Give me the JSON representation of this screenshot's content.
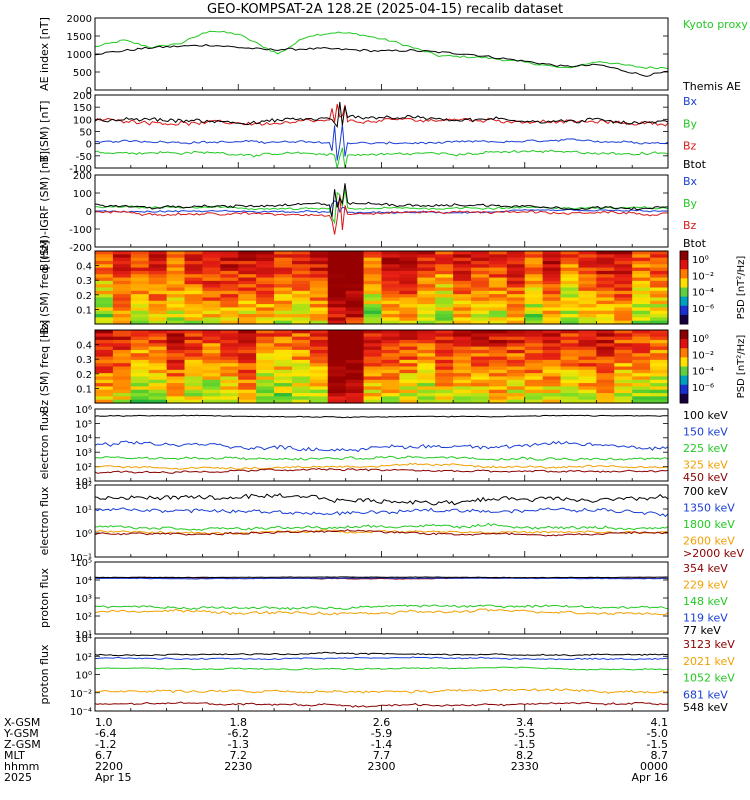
{
  "title": "GEO-KOMPSAT-2A 128.2E (2025-04-15) recalib dataset",
  "colors": {
    "black": "#000000",
    "blue": "#1a3fd6",
    "green": "#22c922",
    "red": "#d81818",
    "orange": "#f0a000",
    "darkred": "#8b0000"
  },
  "chart_data": [
    {
      "type": "line",
      "id": "ae",
      "ylabel": "AE index [nT]",
      "ylim": [
        0,
        2000
      ],
      "yscale": "linear",
      "yticks": [
        "0",
        "500",
        "1000",
        "1500",
        "2000"
      ],
      "series": [
        {
          "name": "Kyoto proxy AE",
          "color": "green",
          "points": [
            [
              0,
              1200
            ],
            [
              0.05,
              1380
            ],
            [
              0.1,
              1180
            ],
            [
              0.15,
              1300
            ],
            [
              0.2,
              1650
            ],
            [
              0.25,
              1550
            ],
            [
              0.32,
              1000
            ],
            [
              0.37,
              1500
            ],
            [
              0.42,
              1600
            ],
            [
              0.46,
              1550
            ],
            [
              0.52,
              1350
            ],
            [
              0.6,
              950
            ],
            [
              0.68,
              900
            ],
            [
              0.76,
              750
            ],
            [
              0.82,
              600
            ],
            [
              0.88,
              800
            ],
            [
              0.92,
              700
            ],
            [
              0.96,
              620
            ],
            [
              1.0,
              620
            ]
          ]
        },
        {
          "name": "Themis AE",
          "color": "black",
          "points": [
            [
              0,
              1000
            ],
            [
              0.1,
              1180
            ],
            [
              0.2,
              1250
            ],
            [
              0.3,
              1120
            ],
            [
              0.4,
              1150
            ],
            [
              0.5,
              1080
            ],
            [
              0.55,
              1100
            ],
            [
              0.65,
              1000
            ],
            [
              0.75,
              800
            ],
            [
              0.82,
              650
            ],
            [
              0.88,
              700
            ],
            [
              0.92,
              550
            ],
            [
              0.96,
              400
            ],
            [
              1.0,
              500
            ]
          ]
        }
      ]
    },
    {
      "type": "line",
      "id": "bsm",
      "ylabel": "B (SM) [nT]",
      "ylim": [
        -100,
        200
      ],
      "yscale": "linear",
      "yticks": [
        "-100",
        "-50",
        "0",
        "50",
        "100",
        "150",
        "200"
      ],
      "series": [
        {
          "name": "Bx",
          "color": "blue",
          "base": 5,
          "amp": 12
        },
        {
          "name": "By",
          "color": "green",
          "base": -40,
          "amp": 15
        },
        {
          "name": "Bz",
          "color": "red",
          "base": 90,
          "amp": 20
        },
        {
          "name": "Btot",
          "color": "black",
          "base": 100,
          "amp": 22
        }
      ]
    },
    {
      "type": "line",
      "id": "digrf",
      "ylabel": "B (SM)-IGRF (SM) [nT]",
      "ylim": [
        -200,
        200
      ],
      "yscale": "linear",
      "yticks": [
        "-200",
        "-100",
        "0",
        "100",
        "200"
      ],
      "series": [
        {
          "name": "Bx",
          "color": "blue",
          "base": -5,
          "amp": 12
        },
        {
          "name": "By",
          "color": "green",
          "base": 15,
          "amp": 15
        },
        {
          "name": "Bz",
          "color": "red",
          "base": -10,
          "amp": 18
        },
        {
          "name": "Btot",
          "color": "black",
          "base": 30,
          "amp": 20
        }
      ]
    },
    {
      "type": "heatmap",
      "id": "bxspec",
      "ylabel": "Bx (SM) freq [Hz]",
      "ylim": [
        0.0,
        0.5
      ],
      "yticks": [
        "0.1",
        "0.2",
        "0.3",
        "0.4"
      ],
      "colorbar_label": "PSD [nT²/Hz]",
      "colorbar_ticks": [
        "10⁰",
        "10⁻²",
        "10⁻⁴",
        "10⁻⁶"
      ]
    },
    {
      "type": "heatmap",
      "id": "bzspec",
      "ylabel": "Bz (SM) freq [Hz]",
      "ylim": [
        0.0,
        0.5
      ],
      "yticks": [
        "0.1",
        "0.2",
        "0.3",
        "0.4"
      ],
      "colorbar_label": "PSD [nT²/Hz]",
      "colorbar_ticks": [
        "10⁰",
        "10⁻²",
        "10⁻⁴",
        "10⁻⁶"
      ]
    },
    {
      "type": "line",
      "id": "eflux1",
      "ylabel": "electron flux",
      "yscale": "log",
      "ylim_exp": [
        1,
        6
      ],
      "yticks": [
        "10¹",
        "10²",
        "10³",
        "10⁴",
        "10⁵",
        "10⁶"
      ],
      "series": [
        {
          "name": "100 keV",
          "color": "black",
          "base": 5.5,
          "amp": 0.08
        },
        {
          "name": "150 keV",
          "color": "blue",
          "base": 3.4,
          "amp": 0.35
        },
        {
          "name": "225 keV",
          "color": "green",
          "base": 2.6,
          "amp": 0.25
        },
        {
          "name": "325 keV",
          "color": "orange",
          "base": 2.0,
          "amp": 0.2
        },
        {
          "name": "450 keV",
          "color": "darkred",
          "base": 1.7,
          "amp": 0.2
        }
      ]
    },
    {
      "type": "line",
      "id": "eflux2",
      "ylabel": "electron flux",
      "yscale": "log",
      "ylim_exp": [
        -1,
        2
      ],
      "yticks": [
        "10⁻¹",
        "10⁰",
        "10¹",
        "10²"
      ],
      "series": [
        {
          "name": "700 keV",
          "color": "black",
          "base": 1.4,
          "amp": 0.25
        },
        {
          "name": "1350 keV",
          "color": "blue",
          "base": 0.9,
          "amp": 0.2
        },
        {
          "name": "1800 keV",
          "color": "green",
          "base": 0.25,
          "amp": 0.15
        },
        {
          "name": "2600 keV",
          "color": "orange",
          "base": 0.05,
          "amp": 0.12
        },
        {
          "name": ">2000 keV",
          "color": "darkred",
          "base": 0.0,
          "amp": 0.12
        }
      ]
    },
    {
      "type": "line",
      "id": "pflux1",
      "ylabel": "proton flux",
      "yscale": "log",
      "ylim_exp": [
        1,
        5
      ],
      "yticks": [
        "10¹",
        "10²",
        "10³",
        "10⁴",
        "10⁵"
      ],
      "series": [
        {
          "name": "354 keV",
          "color": "darkred",
          "base": 4.1,
          "amp": 0.05
        },
        {
          "name": "229 keV",
          "color": "orange",
          "base": 2.2,
          "amp": 0.2
        },
        {
          "name": "148 keV",
          "color": "green",
          "base": 2.5,
          "amp": 0.18
        },
        {
          "name": "119 keV",
          "color": "blue",
          "base": 4.1,
          "amp": 0.04
        },
        {
          "name": "77 keV",
          "color": "black",
          "base": 4.15,
          "amp": 0.03
        }
      ]
    },
    {
      "type": "line",
      "id": "pflux2",
      "ylabel": "proton flux",
      "yscale": "log",
      "ylim_exp": [
        -5,
        4
      ],
      "yticks": [
        "10⁻⁴",
        "10⁻²",
        "10⁰",
        "10²",
        "10⁴"
      ],
      "series": [
        {
          "name": "3123 keV",
          "color": "darkred",
          "base": -4.2,
          "amp": 0.3
        },
        {
          "name": "2021 keV",
          "color": "orange",
          "base": -2.6,
          "amp": 0.4
        },
        {
          "name": "1052 keV",
          "color": "green",
          "base": 0.2,
          "amp": 0.2
        },
        {
          "name": "681 keV",
          "color": "blue",
          "base": 1.5,
          "amp": 0.2
        },
        {
          "name": "548 keV",
          "color": "black",
          "base": 2.0,
          "amp": 0.2
        }
      ]
    }
  ],
  "xaxis": {
    "row_labels": [
      "X-GSM",
      "Y-GSM",
      "Z-GSM",
      "MLT",
      "hhmm",
      "2025"
    ],
    "columns": [
      [
        "1.0",
        "-6.4",
        "-1.2",
        "6.7",
        "2200",
        "Apr 15"
      ],
      [
        "1.8",
        "-6.2",
        "-1.3",
        "7.2",
        "2230",
        ""
      ],
      [
        "2.6",
        "-5.9",
        "-1.4",
        "7.7",
        "2300",
        ""
      ],
      [
        "3.4",
        "-5.5",
        "-1.5",
        "8.2",
        "2330",
        ""
      ],
      [
        "4.1",
        "-5.0",
        "-1.5",
        "8.7",
        "0000",
        "Apr 16"
      ]
    ]
  }
}
